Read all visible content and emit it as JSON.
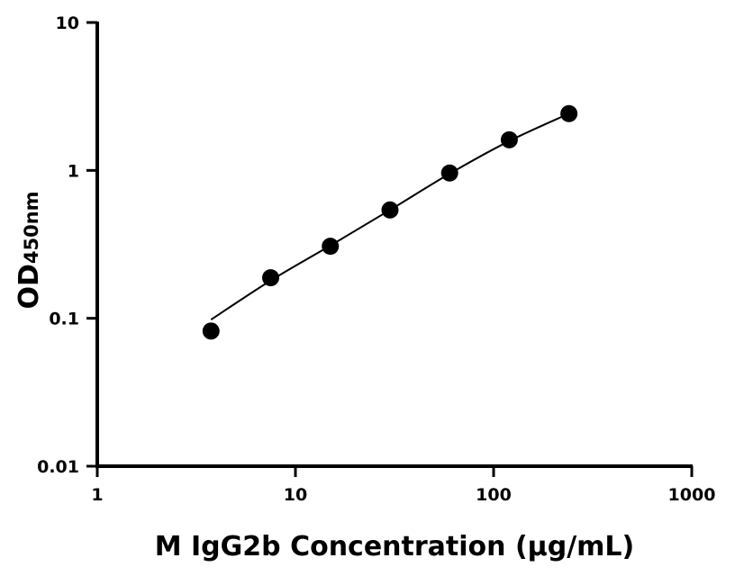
{
  "chart_data": {
    "type": "scatter",
    "title": "",
    "xlabel": "M IgG2b Concentration (µg/mL)",
    "ylabel_main": "OD",
    "ylabel_sub": "450nm",
    "x_scale": "log",
    "y_scale": "log",
    "xlim": [
      1,
      1000
    ],
    "ylim": [
      0.01,
      10
    ],
    "x_ticks": [
      1,
      10,
      100,
      1000
    ],
    "x_tick_labels": [
      "1",
      "10",
      "100",
      "1000"
    ],
    "y_ticks": [
      0.01,
      0.1,
      1,
      10
    ],
    "y_tick_labels": [
      "0.01",
      "0.1",
      "1",
      "10"
    ],
    "grid": false,
    "points": {
      "x": [
        3.75,
        7.5,
        15,
        30,
        60,
        120,
        240
      ],
      "y": [
        0.082,
        0.188,
        0.307,
        0.54,
        0.96,
        1.61,
        2.42
      ]
    },
    "fit_curve": {
      "x": [
        3.75,
        7.5,
        15,
        30,
        60,
        120,
        240
      ],
      "y": [
        0.098,
        0.18,
        0.31,
        0.54,
        0.95,
        1.58,
        2.42
      ]
    },
    "colors": {
      "marks": "#000000",
      "background": "#ffffff"
    }
  }
}
